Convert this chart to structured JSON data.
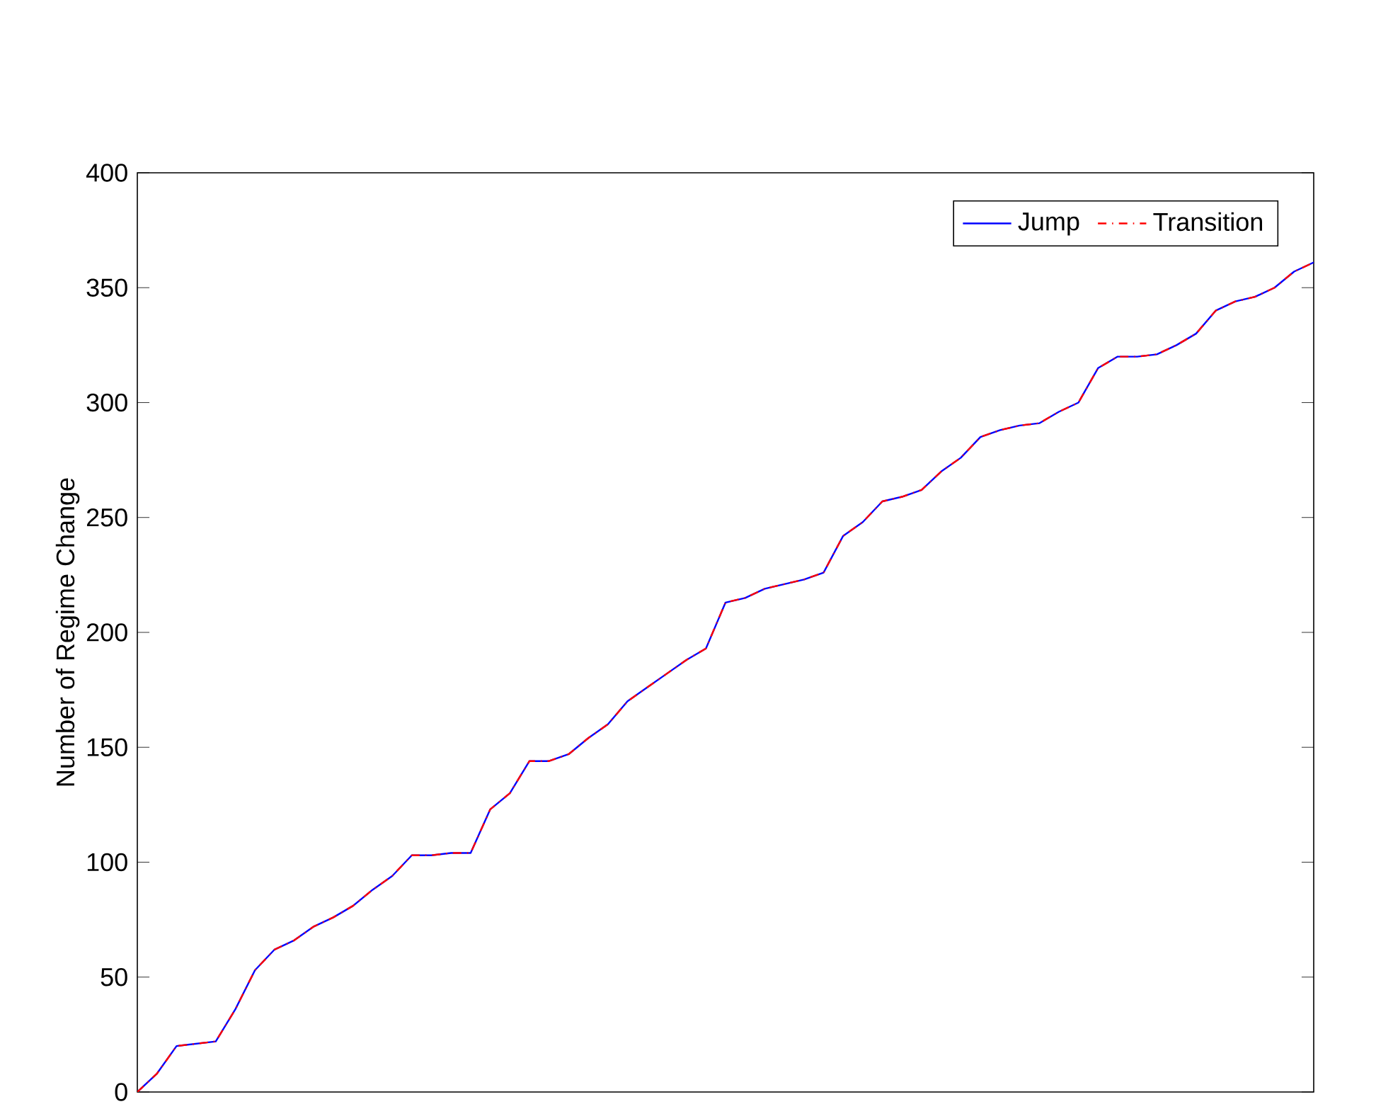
{
  "chart_data": {
    "type": "line",
    "ylabel": "Number of Regime Change",
    "categories": [
      null,
      null,
      null,
      null,
      null,
      null,
      null,
      null,
      null,
      null,
      null,
      null,
      null,
      null,
      null,
      null,
      null,
      null,
      null,
      null,
      null,
      null,
      null,
      null,
      null,
      null,
      null,
      null,
      null,
      null,
      null,
      null,
      null,
      null,
      null,
      null,
      null,
      null,
      null,
      null,
      null,
      null,
      null,
      null,
      null,
      null,
      null,
      null,
      null,
      null,
      null,
      null,
      null,
      null,
      null,
      null,
      null,
      null,
      null,
      null,
      null
    ],
    "series": [
      {
        "name": "Jump",
        "color": "#0000ff",
        "line_style": "solid",
        "values": [
          0,
          8,
          20,
          21,
          22,
          36,
          53,
          62,
          66,
          72,
          76,
          81,
          88,
          94,
          103,
          103,
          104,
          104,
          123,
          130,
          144,
          144,
          147,
          154,
          160,
          170,
          176,
          182,
          188,
          193,
          213,
          215,
          219,
          221,
          223,
          226,
          242,
          248,
          257,
          259,
          262,
          270,
          276,
          285,
          288,
          290,
          291,
          296,
          300,
          315,
          320,
          320,
          321,
          325,
          330,
          340,
          344,
          346,
          350,
          357,
          361
        ]
      },
      {
        "name": "Transition",
        "color": "#ff0000",
        "line_style": "dashed",
        "values": [
          0,
          8,
          20,
          21,
          22,
          36,
          53,
          62,
          66,
          72,
          76,
          81,
          88,
          94,
          103,
          103,
          104,
          104,
          123,
          130,
          144,
          144,
          147,
          154,
          160,
          170,
          176,
          182,
          188,
          193,
          213,
          215,
          219,
          221,
          223,
          226,
          242,
          248,
          257,
          259,
          262,
          270,
          276,
          285,
          288,
          290,
          291,
          296,
          300,
          315,
          320,
          320,
          321,
          325,
          330,
          340,
          344,
          346,
          350,
          357,
          361
        ]
      }
    ],
    "ylim": [
      0,
      400
    ],
    "yticks": [
      0,
      50,
      100,
      150,
      200,
      250,
      300,
      350,
      400
    ],
    "legend": "top right",
    "marker": "none",
    "grid": false
  }
}
